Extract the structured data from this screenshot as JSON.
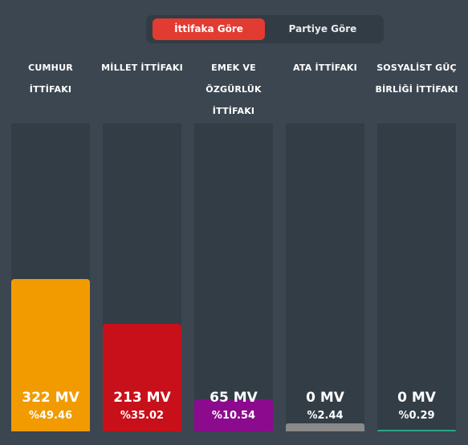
{
  "toggle": {
    "active_label": "İttifaka Göre",
    "inactive_label": "Partiye Göre"
  },
  "chart_data": {
    "type": "bar",
    "categories": [
      "CUMHUR İTTİFAKI",
      "MİLLET İTTİFAKI",
      "EMEK VE ÖZGÜRLÜK İTTİFAKI",
      "ATA İTTİFAKI",
      "SOSYALİST GÜÇ BİRLİĞİ İTTİFAKI"
    ],
    "values": [
      49.46,
      35.02,
      10.54,
      2.44,
      0.29
    ],
    "seats": [
      322,
      213,
      65,
      0,
      0
    ],
    "ylim": [
      0,
      100
    ]
  },
  "columns": [
    {
      "label_lines": [
        "CUMHUR",
        "İTTİFAKI"
      ],
      "mv": "322 MV",
      "pct": "%49.46",
      "color": "#f19b00"
    },
    {
      "label_lines": [
        "MİLLET İTTİFAKI"
      ],
      "mv": "213 MV",
      "pct": "%35.02",
      "color": "#c8101a"
    },
    {
      "label_lines": [
        "EMEK VE",
        "ÖZGÜRLÜK",
        "İTTİFAKI"
      ],
      "mv": "65 MV",
      "pct": "%10.54",
      "color": "#8b0a8d"
    },
    {
      "label_lines": [
        "ATA İTTİFAKI"
      ],
      "mv": "0 MV",
      "pct": "%2.44",
      "color": "#8a8a8a"
    },
    {
      "label_lines": [
        "SOSYALİST GÜÇ",
        "BİRLİĞİ İTTİFAKI"
      ],
      "mv": "0 MV",
      "pct": "%0.29",
      "color": "#2aa68a"
    }
  ]
}
